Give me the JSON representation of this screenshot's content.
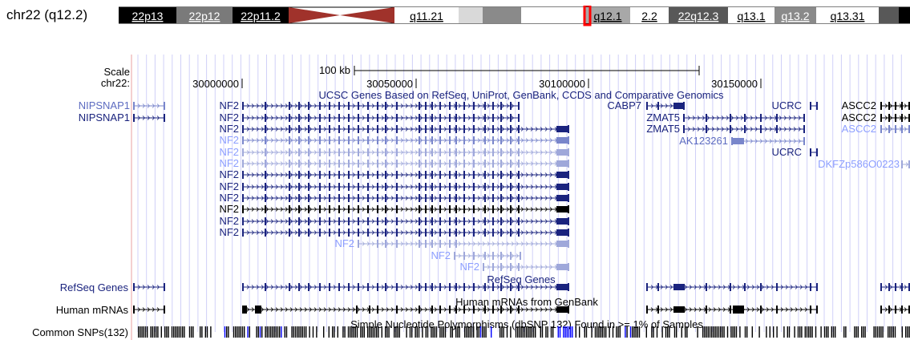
{
  "position_label": "chr22 (q12.2)",
  "ideogram": {
    "bands": [
      {
        "label": "22p13",
        "fill": "#000000",
        "color": "#ffffff"
      },
      {
        "label": "22p12",
        "fill": "#7a7a7a",
        "color": "#ffffff"
      },
      {
        "label": "22p11.2",
        "fill": "#000000",
        "color": "#ffffff"
      },
      {
        "label": "",
        "fill": "#a0322b"
      },
      {
        "label": "q11.21",
        "fill": "#ffffff",
        "color": "#000000"
      },
      {
        "label": "",
        "fill": "#d9d9d9"
      },
      {
        "label": "",
        "fill": "#8a8a8a"
      },
      {
        "label": "",
        "fill": "#ffffff"
      },
      {
        "label": "q12.1",
        "fill": "#a8a8a8",
        "color": "#000000"
      },
      {
        "label": "2.2",
        "fill": "#ffffff",
        "color": "#000000"
      },
      {
        "label": "22q12.3",
        "fill": "#585858",
        "color": "#ffffff"
      },
      {
        "label": "q13.1",
        "fill": "#ffffff",
        "color": "#000000"
      },
      {
        "label": "q13.2",
        "fill": "#8a8a8a",
        "color": "#ffffff"
      },
      {
        "label": "q13.31",
        "fill": "#ffffff",
        "color": "#000000"
      },
      {
        "label": "",
        "fill": "#585858"
      },
      {
        "label": "",
        "fill": "#000000"
      }
    ],
    "highlight_color": "#ff0000"
  },
  "scale": {
    "scale_label": "Scale",
    "chrom_label": "chr22:",
    "bar_label": "100 kb",
    "ticks": [
      "30000000",
      "30050000",
      "30100000",
      "30150000"
    ]
  },
  "track_titles": {
    "ucsc_genes": "UCSC Genes Based on RefSeq, UniProt, GenBank, CCDS and Comparative Genomics",
    "refseq": "RefSeq Genes",
    "mrna": "Human mRNAs from GenBank",
    "snp": "Simple Nucleotide Polymorphisms (dbSNP 132) Found in >= 1% of Samples"
  },
  "left_labels": [
    {
      "text": "RefSeq Genes",
      "color": "#1a237e"
    },
    {
      "text": "Human mRNAs",
      "color": "#000000"
    },
    {
      "text": "Common SNPs(132)",
      "color": "#000000"
    }
  ],
  "gene_labels": [
    {
      "text": "NIPSNAP1",
      "color": "#5c6bc0"
    },
    {
      "text": "NIPSNAP1",
      "color": "#1a237e"
    },
    {
      "text": "NF2",
      "color": "#1a237e"
    },
    {
      "text": "NF2",
      "color": "#1a237e"
    },
    {
      "text": "NF2",
      "color": "#1a237e"
    },
    {
      "text": "NF2",
      "color": "#8c9eff"
    },
    {
      "text": "NF2",
      "color": "#8c9eff"
    },
    {
      "text": "NF2",
      "color": "#8c9eff"
    },
    {
      "text": "NF2",
      "color": "#1a237e"
    },
    {
      "text": "NF2",
      "color": "#1a237e"
    },
    {
      "text": "NF2",
      "color": "#1a237e"
    },
    {
      "text": "NF2",
      "color": "#000000"
    },
    {
      "text": "NF2",
      "color": "#1a237e"
    },
    {
      "text": "NF2",
      "color": "#1a237e"
    },
    {
      "text": "NF2",
      "color": "#8c9eff"
    },
    {
      "text": "NF2",
      "color": "#8c9eff"
    },
    {
      "text": "NF2",
      "color": "#8c9eff"
    },
    {
      "text": "CABP7",
      "color": "#1a237e"
    },
    {
      "text": "ZMAT5",
      "color": "#1a237e"
    },
    {
      "text": "ZMAT5",
      "color": "#1a237e"
    },
    {
      "text": "AK123261",
      "color": "#5c6bc0"
    },
    {
      "text": "UCRC",
      "color": "#1a237e"
    },
    {
      "text": "UCRC",
      "color": "#1a237e"
    },
    {
      "text": "DKFZp586O0223",
      "color": "#8c9eff"
    },
    {
      "text": "ASCC2",
      "color": "#000000"
    },
    {
      "text": "ASCC2",
      "color": "#000000"
    },
    {
      "text": "ASCC2",
      "color": "#8c9eff"
    }
  ],
  "colors": {
    "guide_line": "#d0d0f8",
    "left_border": "#e8a0a0",
    "dark_gene": "#1a237e",
    "light_gene": "#7986cb",
    "lighter_gene": "#9fa8da",
    "snp_blue": "#0000ff"
  }
}
